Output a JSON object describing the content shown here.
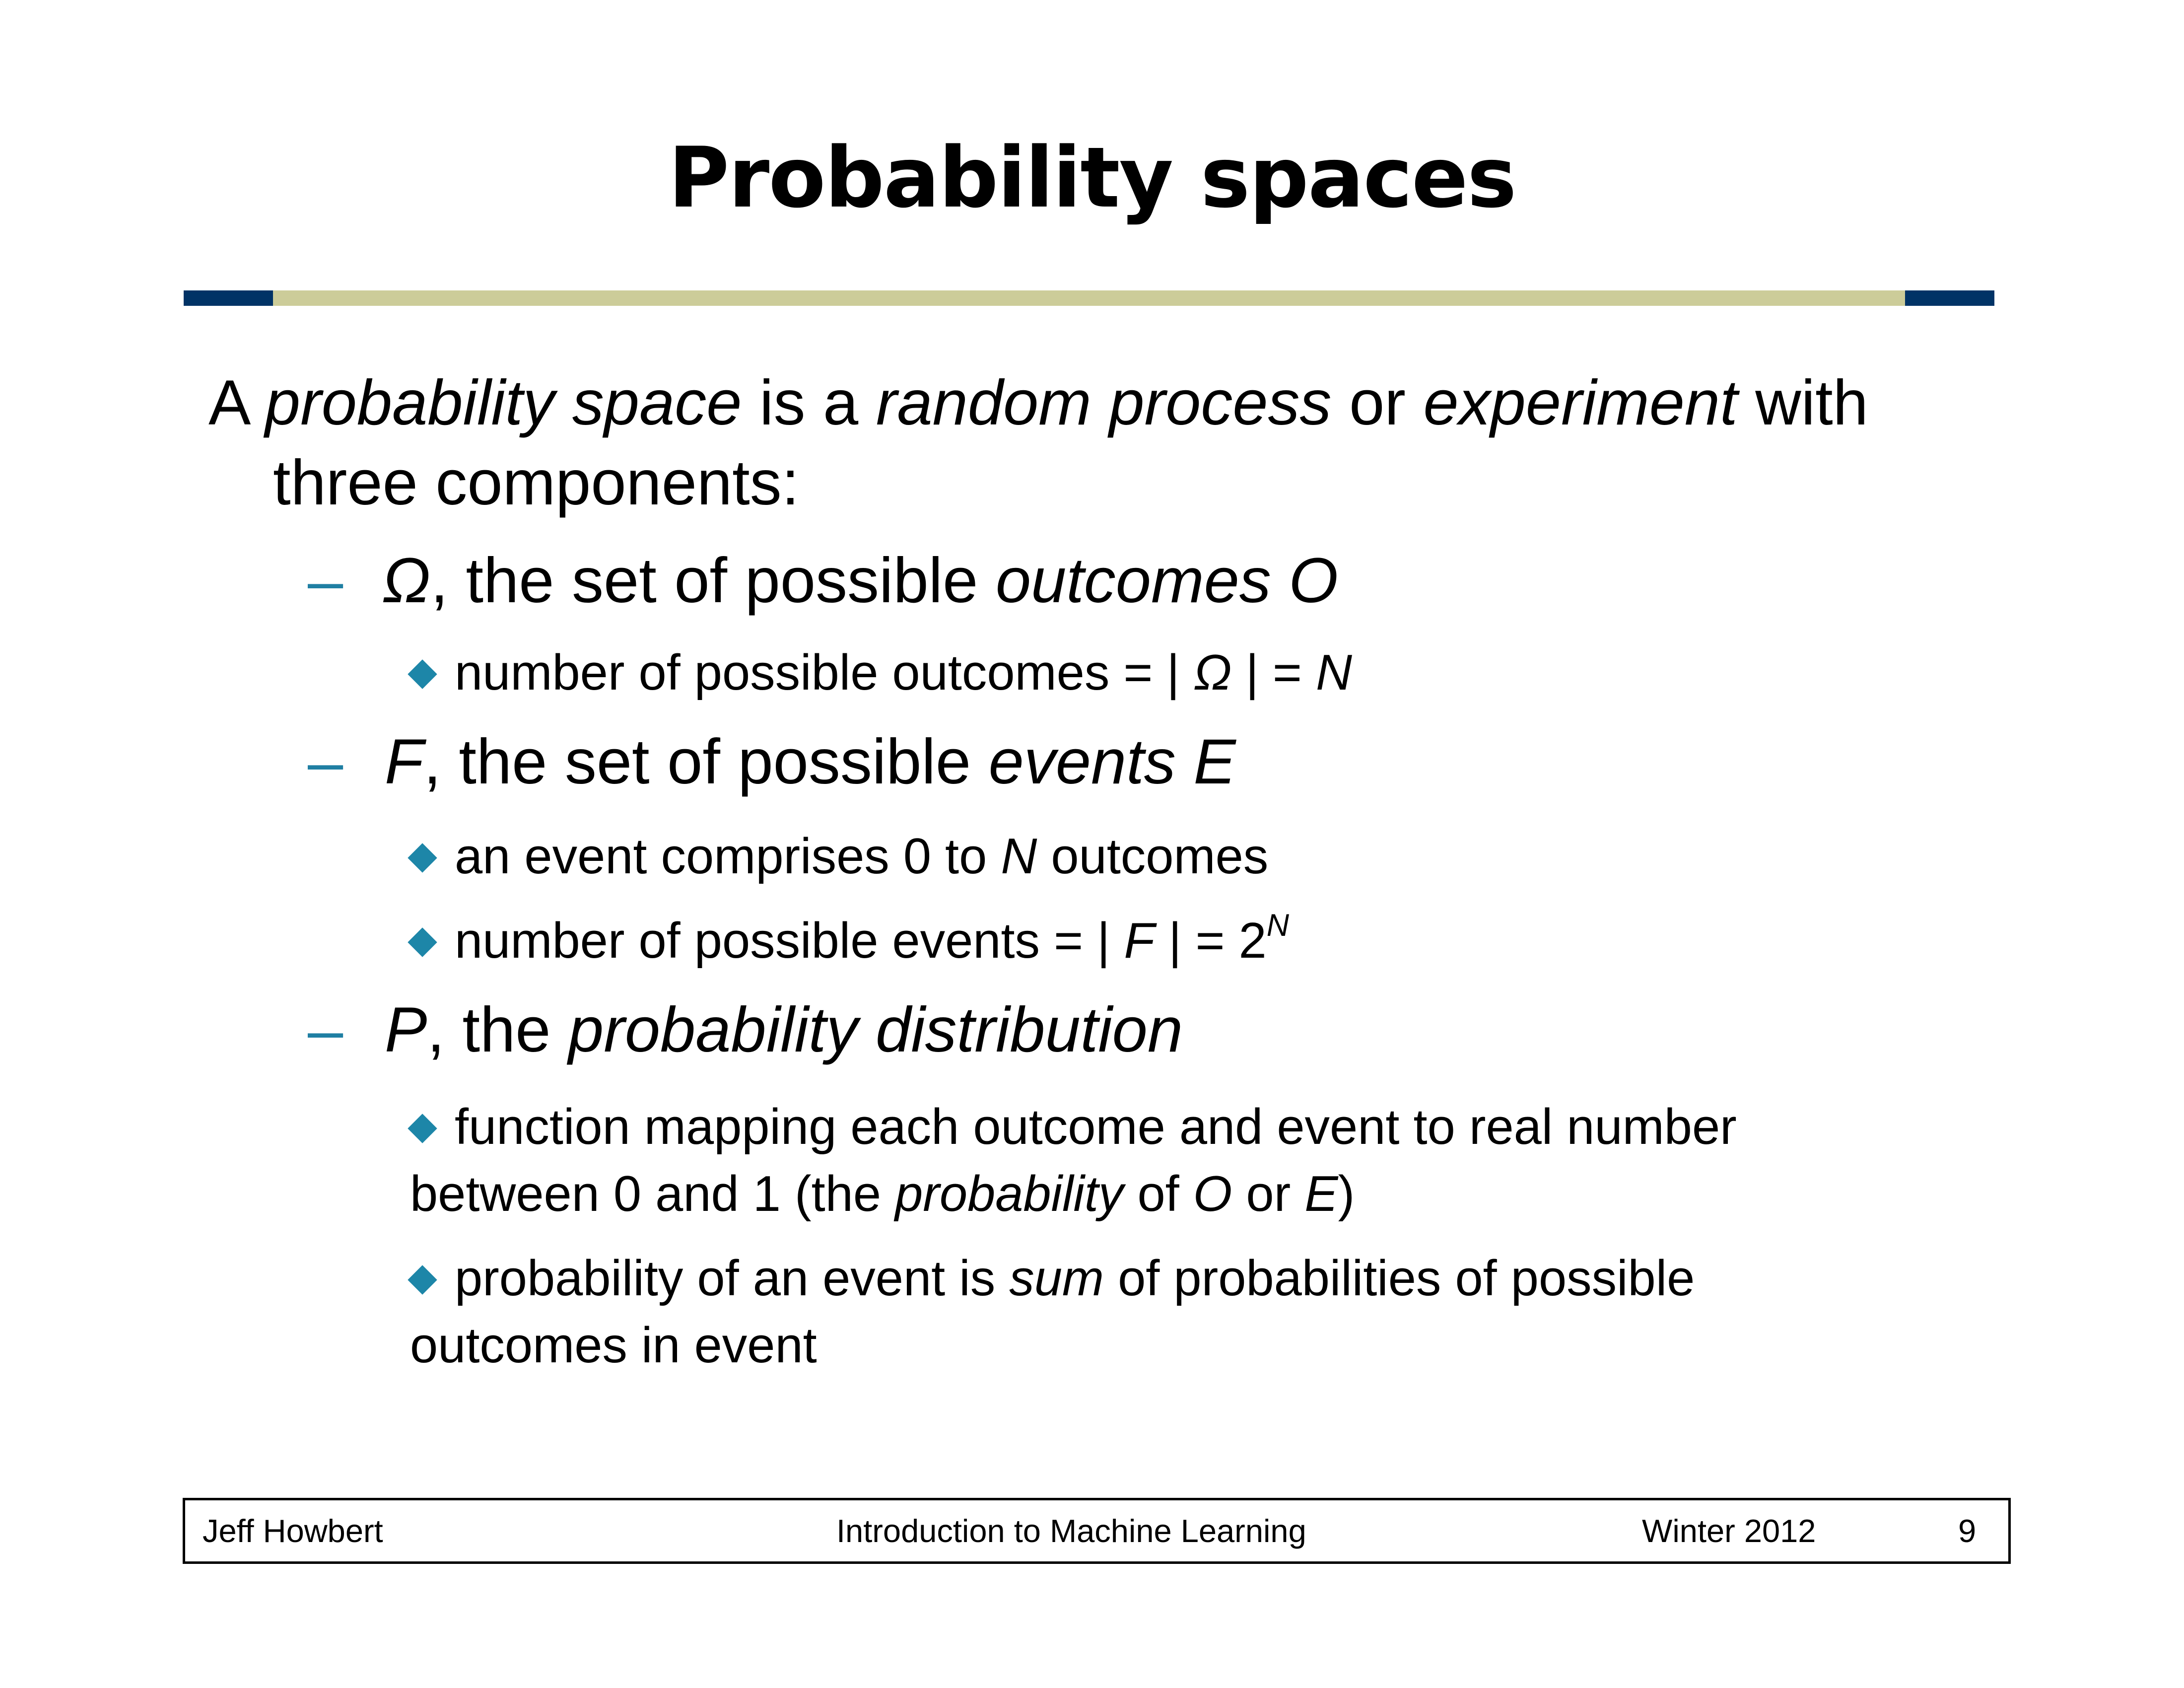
{
  "slide": {
    "title": "Probability spaces",
    "intro": {
      "p1": "A ",
      "p2": "probability space",
      "p3": " is a ",
      "p4": "random process",
      "p5": " or ",
      "p6": "experiment",
      "p7": " with",
      "line2": "three components:"
    },
    "omega": {
      "dash": "–",
      "sym": "Ω",
      "text": ", the set of possible ",
      "term": "outcomes O",
      "bullet1": {
        "text": "number of possible outcomes = | ",
        "sym": "Ω",
        "mid": " | = ",
        "n": "N"
      }
    },
    "events": {
      "dash": "–",
      "sym": "F",
      "text": ", the set of possible ",
      "term": "events E",
      "bullet1": {
        "a": "an event comprises 0 to ",
        "n": "N",
        "b": " outcomes"
      },
      "bullet2": {
        "a": "number of possible events = | ",
        "f": "F",
        "b": " | = 2",
        "sup": "N"
      }
    },
    "prob": {
      "dash": "–",
      "sym": "P",
      "text": ", the ",
      "term": "probability distribution",
      "bullet1": {
        "line1": "function mapping each outcome and event to real number",
        "a": "between 0 and 1 (the ",
        "term": "probability",
        "b": " of ",
        "o": "O",
        "c": " or ",
        "e": "E",
        "d": ")"
      },
      "bullet2": {
        "a": "probability of an event is ",
        "term": "sum",
        "b": " of probabilities of possible",
        "line2": "outcomes in event"
      }
    }
  },
  "footer": {
    "author": "Jeff Howbert",
    "course": "Introduction to Machine Learning",
    "term": "Winter 2012",
    "page": "9"
  },
  "colors": {
    "rule_bar": "#cccc99",
    "rule_ends": "#003366",
    "bullet_accent": "#1d86a8"
  }
}
